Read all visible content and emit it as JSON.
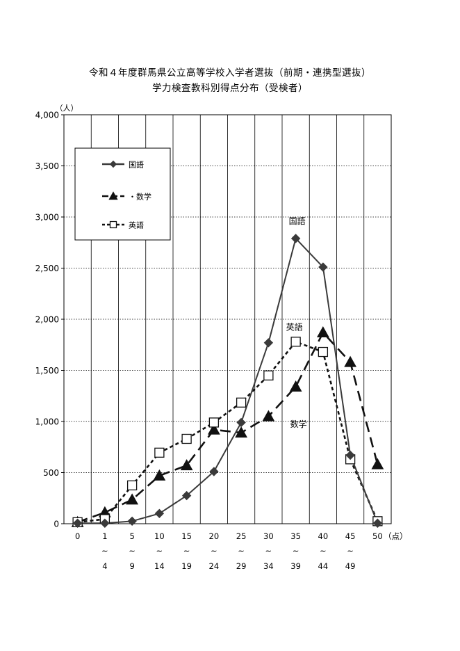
{
  "chart_data": {
    "type": "line",
    "title": "令和４年度群馬県公立高等学校入学者選抜（前期・連携型選抜）",
    "subtitle": "学力検査教科別得点分布（受検者）",
    "ylabel": "（人）",
    "xlabel": "（点）",
    "ylim": [
      0,
      4000
    ],
    "yticks": [
      0,
      500,
      1000,
      1500,
      2000,
      2500,
      3000,
      3500,
      4000
    ],
    "ytick_labels": [
      "0",
      "500",
      "1,000",
      "1,500",
      "2,000",
      "2,500",
      "3,000",
      "3,500",
      "4,000"
    ],
    "categories": [
      {
        "top": "0",
        "sep": "",
        "bottom": ""
      },
      {
        "top": "1",
        "sep": "~",
        "bottom": "4"
      },
      {
        "top": "5",
        "sep": "~",
        "bottom": "9"
      },
      {
        "top": "10",
        "sep": "~",
        "bottom": "14"
      },
      {
        "top": "15",
        "sep": "~",
        "bottom": "19"
      },
      {
        "top": "20",
        "sep": "~",
        "bottom": "24"
      },
      {
        "top": "25",
        "sep": "~",
        "bottom": "29"
      },
      {
        "top": "30",
        "sep": "~",
        "bottom": "34"
      },
      {
        "top": "35",
        "sep": "~",
        "bottom": "39"
      },
      {
        "top": "40",
        "sep": "~",
        "bottom": "44"
      },
      {
        "top": "45",
        "sep": "~",
        "bottom": "49"
      },
      {
        "top": "50",
        "sep": "",
        "bottom": ""
      }
    ],
    "series": [
      {
        "name": "国語",
        "marker": "diamond",
        "line": "solid",
        "color": "#3a3a3a",
        "values": [
          5,
          5,
          25,
          100,
          275,
          510,
          990,
          1770,
          2790,
          2510,
          670,
          5
        ]
      },
      {
        "name": "数学",
        "marker": "triangle",
        "line": "dash",
        "color": "#111111",
        "values": [
          15,
          110,
          235,
          470,
          570,
          920,
          890,
          1050,
          1340,
          1870,
          1580,
          580
        ]
      },
      {
        "name": "英語",
        "marker": "square-open",
        "line": "dot",
        "color": "#111111",
        "values": [
          15,
          45,
          375,
          695,
          830,
          990,
          1185,
          1450,
          1780,
          1680,
          630,
          25
        ]
      }
    ],
    "legend": {
      "placement": "top-left",
      "items": [
        {
          "label": "国語",
          "series": 0
        },
        {
          "label": "・数学",
          "series": 1
        },
        {
          "label": "英語",
          "series": 2
        }
      ]
    },
    "annotations": [
      {
        "text": "国語",
        "series": 0,
        "near_index": 8
      },
      {
        "text": "英語",
        "series": 2,
        "near_index": 8
      },
      {
        "text": "数学",
        "series": 1,
        "near_index": 8
      }
    ],
    "grid": {
      "horizontal": "dotted",
      "vertical": "solid"
    }
  }
}
